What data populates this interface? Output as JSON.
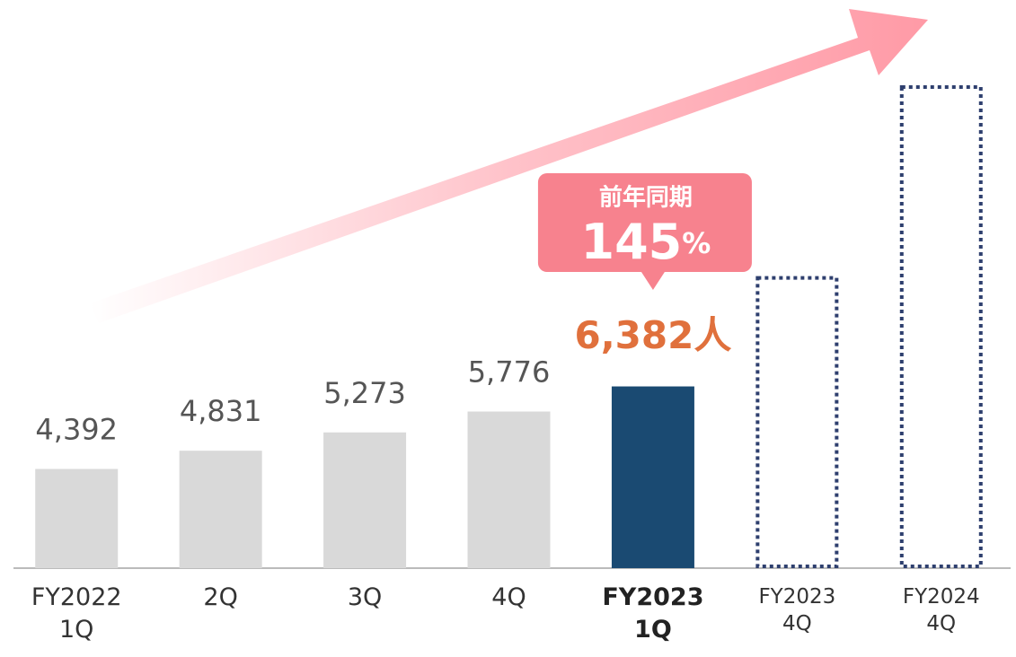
{
  "chart_data": {
    "type": "bar",
    "categories": [
      "FY2022 1Q",
      "2Q",
      "3Q",
      "4Q",
      "FY2023 1Q",
      "FY2023 4Q",
      "FY2024 4Q"
    ],
    "values": [
      4392,
      4831,
      5273,
      5776,
      6382,
      null,
      null
    ],
    "value_labels": [
      "4,392",
      "4,831",
      "5,273",
      "5,776",
      "6,382人",
      null,
      null
    ],
    "target_values": [
      null,
      null,
      null,
      null,
      null,
      9000,
      13600
    ],
    "color": "#d9d9d9",
    "highlight_color": "#1a4a72",
    "highlight_label_color": "#e0703c",
    "target_color": "#2e3f6e",
    "highlight_index": 4,
    "ylim": [
      2000,
      15700
    ],
    "callout": {
      "title": "前年同期",
      "value": "145",
      "unit": "%"
    }
  }
}
